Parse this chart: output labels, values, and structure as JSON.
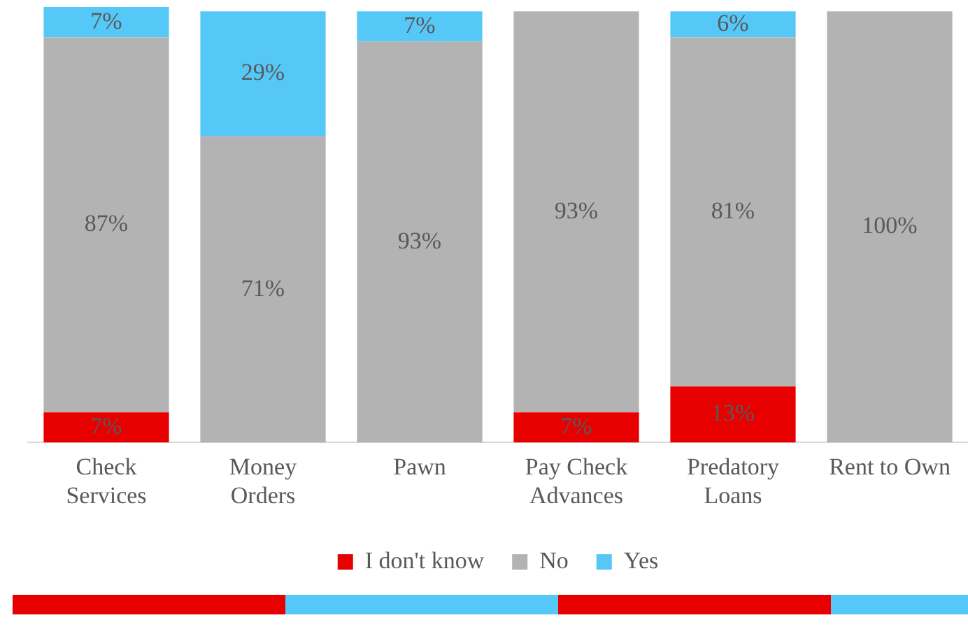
{
  "chart_data": {
    "type": "bar",
    "stacked": true,
    "legend": "bottom",
    "grid": false,
    "categories": [
      "Check\nServices",
      "Money\nOrders",
      "Pawn",
      "Pay Check\nAdvances",
      "Predatory\nLoans",
      "Rent to Own"
    ],
    "series": [
      {
        "name": "I don't know",
        "color": "#e80000",
        "values": [
          7,
          0,
          0,
          7,
          13,
          0
        ],
        "value_labels": [
          "7%",
          null,
          null,
          "7%",
          "13%",
          null
        ]
      },
      {
        "name": "No",
        "color": "#b3b3b3",
        "values": [
          87,
          71,
          93,
          93,
          81,
          100
        ],
        "value_labels": [
          "87%",
          "71%",
          "93%",
          "93%",
          "81%",
          "100%"
        ]
      },
      {
        "name": "Yes",
        "color": "#55c8f8",
        "values": [
          7,
          29,
          7,
          0,
          6,
          0
        ],
        "value_labels": [
          "7%",
          "29%",
          "7%",
          null,
          "6%",
          null
        ]
      }
    ]
  }
}
